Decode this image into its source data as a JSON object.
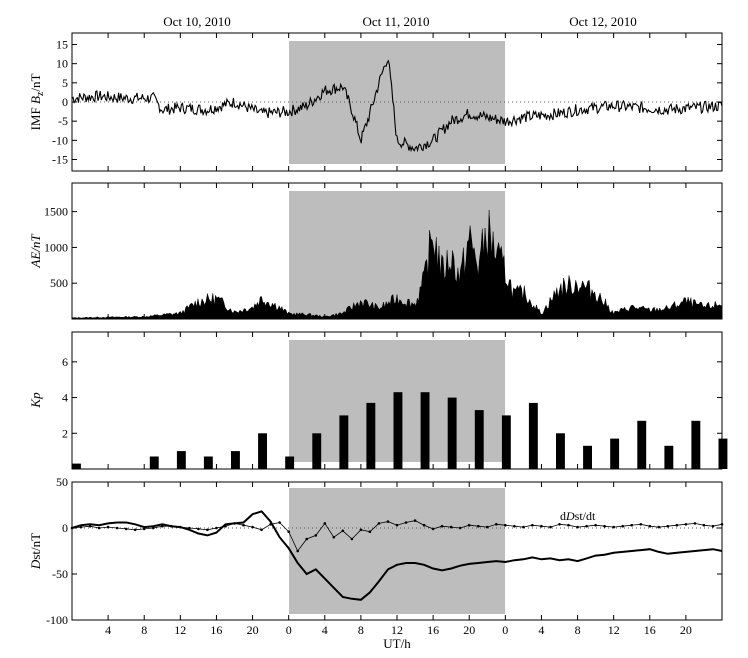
{
  "dates": [
    "Oct 10, 2010",
    "Oct 11, 2010",
    "Oct 12, 2010"
  ],
  "xlabel": "UT/h",
  "x_tick_labels": [
    "4",
    "8",
    "12",
    "16",
    "20",
    "0",
    "4",
    "8",
    "12",
    "16",
    "20",
    "0",
    "4",
    "8",
    "12",
    "16",
    "20"
  ],
  "shaded_interval_hours": [
    48,
    96
  ],
  "shade_color": "#bdbdbd",
  "chart_data": [
    {
      "type": "line",
      "ylabel": "IMF Bz/nT",
      "ylabel_parts": [
        "IMF ",
        "B",
        "z",
        "/nT"
      ],
      "ylim": [
        -18,
        18
      ],
      "yticks": [
        "15",
        "10",
        "5",
        "0",
        "-5",
        "-10",
        "-15"
      ],
      "ytick_values": [
        15,
        10,
        5,
        0,
        -5,
        -10,
        -15
      ],
      "zero_dotted": true,
      "x_hours": [
        0,
        3,
        6,
        9,
        10,
        12,
        15,
        18,
        21,
        24,
        26,
        28,
        30,
        31,
        32,
        33,
        34,
        35,
        36,
        38,
        39,
        40,
        42,
        44,
        46,
        48,
        50,
        54,
        56,
        60,
        66,
        72,
        78,
        84,
        90,
        96
      ],
      "values": [
        1,
        1.5,
        1,
        1,
        -2,
        -1.5,
        -2,
        0,
        -3,
        -2.5,
        -1,
        3,
        4,
        -2,
        -10,
        -3,
        5,
        12,
        -10,
        -12,
        -11,
        -10,
        -5,
        -3,
        -4,
        -5,
        -4,
        -3,
        -2,
        -1,
        -2,
        -1,
        -2,
        -1,
        -2,
        -1
      ]
    },
    {
      "type": "area",
      "ylabel": "AE/nT",
      "ylim": [
        0,
        1900
      ],
      "yticks": [
        "1500",
        "1000",
        "500"
      ],
      "ytick_values": [
        1500,
        1000,
        500
      ],
      "x_hours": [
        0,
        4,
        8,
        12,
        14,
        16,
        18,
        20,
        21,
        23,
        24,
        26,
        28,
        30,
        32,
        34,
        36,
        38,
        39,
        40,
        41,
        42,
        43,
        44,
        45,
        46,
        47,
        48,
        49,
        50,
        52,
        54,
        56,
        58,
        60,
        62,
        64,
        66,
        68,
        70,
        72,
        74,
        76,
        78,
        80,
        82,
        84,
        86,
        88,
        90,
        92,
        94,
        96
      ],
      "values": [
        20,
        30,
        40,
        100,
        300,
        350,
        120,
        200,
        350,
        200,
        90,
        80,
        40,
        100,
        300,
        180,
        350,
        250,
        650,
        1450,
        800,
        1050,
        700,
        1350,
        900,
        1500,
        1100,
        800,
        420,
        450,
        90,
        520,
        600,
        450,
        100,
        200,
        150,
        180,
        300,
        200,
        250,
        300,
        150,
        200,
        250,
        100,
        150,
        200,
        250,
        300,
        150,
        200,
        400
      ]
    },
    {
      "type": "bar",
      "ylabel": "Kp",
      "ylim": [
        0,
        7.67
      ],
      "yticks": [
        "6",
        "4",
        "2"
      ],
      "ytick_values": [
        6,
        4,
        2
      ],
      "values": [
        0.3,
        0,
        0,
        0.7,
        1,
        0.7,
        1,
        2,
        0.7,
        2,
        3,
        3.7,
        4.3,
        4.3,
        4,
        3.3,
        3,
        3.7,
        2,
        1.3,
        1.7,
        2.7,
        1.3,
        2.7,
        1.7
      ]
    },
    {
      "type": "line",
      "ylabel": "Dst/nT",
      "ylabel_parts": [
        "D",
        "st/nT"
      ],
      "ylim": [
        -100,
        50
      ],
      "yticks": [
        "50",
        "0",
        "-50",
        "-100"
      ],
      "ytick_values": [
        50,
        0,
        -50,
        -100
      ],
      "zero_dotted": true,
      "annotation": "dDst/dt",
      "annotation_parts": [
        "d",
        "D",
        "st/dt"
      ],
      "series": [
        {
          "name": "Dst",
          "values": [
            0,
            3,
            4,
            3,
            5,
            6,
            6,
            4,
            1,
            2,
            4,
            2,
            1,
            -2,
            -6,
            -8,
            -5,
            4,
            5,
            6,
            15,
            18,
            7,
            -10,
            -22,
            -38,
            -50,
            -45,
            -55,
            -65,
            -75,
            -77,
            -78,
            -70,
            -58,
            -45,
            -40,
            -38,
            -38,
            -40,
            -44,
            -46,
            -44,
            -41,
            -39,
            -38,
            -37,
            -36,
            -37,
            -35,
            -34,
            -32,
            -34,
            -33,
            -35,
            -34,
            -36,
            -33,
            -30,
            -29,
            -27,
            -26,
            -25,
            -24,
            -23,
            -26,
            -28,
            -27,
            -26,
            -25,
            -24,
            -23,
            -25
          ]
        },
        {
          "name": "dDst/dt",
          "values": [
            0,
            1,
            2,
            0,
            1,
            0,
            -1,
            -2,
            -1,
            0,
            2,
            2,
            1,
            0,
            -1,
            -2,
            0,
            2,
            5,
            3,
            1,
            -2,
            4,
            6,
            -4,
            -25,
            -12,
            -8,
            5,
            -10,
            -3,
            -12,
            -2,
            -4,
            5,
            7,
            3,
            6,
            8,
            3,
            -1,
            2,
            1,
            0,
            3,
            2,
            1,
            4,
            3,
            2,
            1,
            3,
            2,
            1,
            4,
            3,
            1,
            2,
            3,
            2,
            1,
            2,
            3,
            4,
            2,
            1,
            2,
            3,
            4,
            5,
            3,
            2,
            4
          ]
        }
      ]
    }
  ]
}
